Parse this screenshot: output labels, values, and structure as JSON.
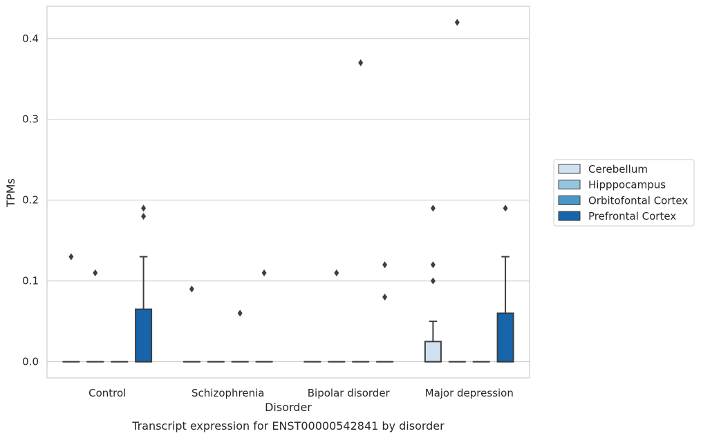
{
  "caption": "Transcript expression for ENST00000542841 by disorder",
  "chart_data": {
    "type": "box",
    "xlabel": "Disorder",
    "ylabel": "TPMs",
    "categories": [
      "Control",
      "Schizophrenia",
      "Bipolar disorder",
      "Major depression"
    ],
    "ylim": [
      -0.02,
      0.44
    ],
    "yticks": [
      0.0,
      0.1,
      0.2,
      0.3,
      0.4
    ],
    "ytick_labels": [
      "0.0",
      "0.1",
      "0.2",
      "0.3",
      "0.4"
    ],
    "grid": "horizontal",
    "legend_position": "right",
    "series": [
      {
        "name": "Cerebellum",
        "color": "#d0e1f2",
        "boxes": [
          {
            "q1": 0,
            "median": 0,
            "q3": 0,
            "whisker_low": 0,
            "whisker_high": 0,
            "outliers": [
              0.13
            ]
          },
          {
            "q1": 0,
            "median": 0,
            "q3": 0,
            "whisker_low": 0,
            "whisker_high": 0,
            "outliers": [
              0.09
            ]
          },
          {
            "q1": 0,
            "median": 0,
            "q3": 0,
            "whisker_low": 0,
            "whisker_high": 0,
            "outliers": []
          },
          {
            "q1": 0,
            "median": 0,
            "q3": 0.025,
            "whisker_low": 0,
            "whisker_high": 0.05,
            "outliers": [
              0.1,
              0.12,
              0.19
            ]
          }
        ]
      },
      {
        "name": "Hipppocampus",
        "color": "#94c4df",
        "boxes": [
          {
            "q1": 0,
            "median": 0,
            "q3": 0,
            "whisker_low": 0,
            "whisker_high": 0,
            "outliers": [
              0.11
            ]
          },
          {
            "q1": 0,
            "median": 0,
            "q3": 0,
            "whisker_low": 0,
            "whisker_high": 0,
            "outliers": []
          },
          {
            "q1": 0,
            "median": 0,
            "q3": 0,
            "whisker_low": 0,
            "whisker_high": 0,
            "outliers": [
              0.11
            ]
          },
          {
            "q1": 0,
            "median": 0,
            "q3": 0,
            "whisker_low": 0,
            "whisker_high": 0,
            "outliers": [
              0.42
            ]
          }
        ]
      },
      {
        "name": "Orbitofontal Cortex",
        "color": "#4a98c9",
        "boxes": [
          {
            "q1": 0,
            "median": 0,
            "q3": 0,
            "whisker_low": 0,
            "whisker_high": 0,
            "outliers": []
          },
          {
            "q1": 0,
            "median": 0,
            "q3": 0,
            "whisker_low": 0,
            "whisker_high": 0,
            "outliers": [
              0.06
            ]
          },
          {
            "q1": 0,
            "median": 0,
            "q3": 0,
            "whisker_low": 0,
            "whisker_high": 0,
            "outliers": [
              0.37
            ]
          },
          {
            "q1": 0,
            "median": 0,
            "q3": 0,
            "whisker_low": 0,
            "whisker_high": 0,
            "outliers": []
          }
        ]
      },
      {
        "name": "Prefrontal Cortex",
        "color": "#1764ab",
        "boxes": [
          {
            "q1": 0,
            "median": 0,
            "q3": 0.065,
            "whisker_low": 0,
            "whisker_high": 0.13,
            "outliers": [
              0.18,
              0.19
            ]
          },
          {
            "q1": 0,
            "median": 0,
            "q3": 0,
            "whisker_low": 0,
            "whisker_high": 0,
            "outliers": [
              0.11
            ]
          },
          {
            "q1": 0,
            "median": 0,
            "q3": 0,
            "whisker_low": 0,
            "whisker_high": 0,
            "outliers": [
              0.08,
              0.12
            ]
          },
          {
            "q1": 0,
            "median": 0,
            "q3": 0.06,
            "whisker_low": 0,
            "whisker_high": 0.13,
            "outliers": [
              0.19
            ]
          }
        ]
      }
    ],
    "colors": {
      "grid": "#cccccc",
      "frame": "#cccccc",
      "edge": "#3d3d3d",
      "text": "#262626"
    }
  }
}
